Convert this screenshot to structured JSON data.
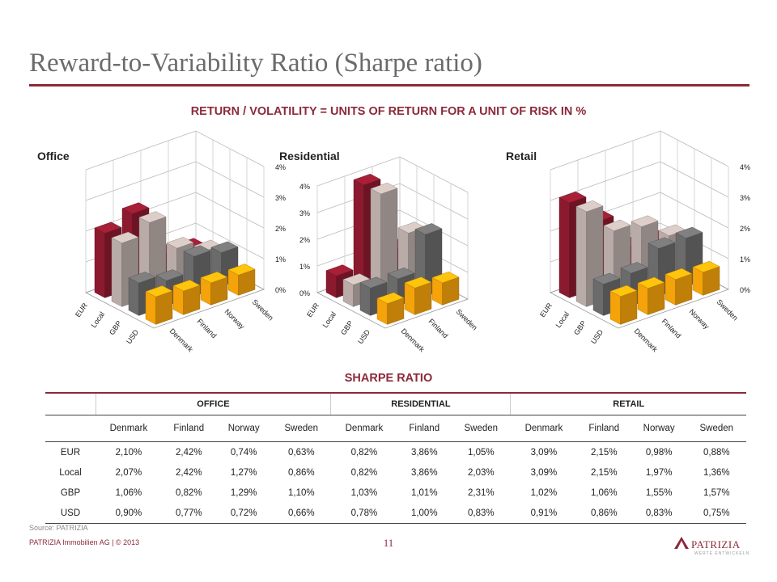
{
  "title": "Reward-to-Variability Ratio (Sharpe ratio)",
  "subtitle": "RETURN / VOLATILITY = UNITS OF RETURN FOR A UNIT OF RISK IN %",
  "colors": {
    "accent": "#8c2a3a",
    "EUR": "#8c1a2e",
    "Local": "#b9aca8",
    "GBP": "#6b6b6b",
    "USD": "#f5a30a"
  },
  "chart_data": [
    {
      "type": "bar",
      "title": "Office",
      "series": [
        {
          "name": "EUR",
          "values": [
            2.1,
            2.42,
            0.74,
            0.63
          ]
        },
        {
          "name": "Local",
          "values": [
            2.07,
            2.42,
            1.27,
            0.86
          ]
        },
        {
          "name": "GBP",
          "values": [
            1.06,
            0.82,
            1.29,
            1.1
          ]
        },
        {
          "name": "USD",
          "values": [
            0.9,
            0.77,
            0.72,
            0.66
          ]
        }
      ],
      "categories": [
        "Denmark",
        "Finland",
        "Norway",
        "Sweden"
      ],
      "ylim": [
        0,
        4
      ],
      "yticks": [
        "0%",
        "1%",
        "2%",
        "3%",
        "4%"
      ]
    },
    {
      "type": "bar",
      "title": "Residential",
      "series": [
        {
          "name": "EUR",
          "values": [
            0.82,
            3.86,
            1.05
          ]
        },
        {
          "name": "Local",
          "values": [
            0.82,
            3.86,
            2.03
          ]
        },
        {
          "name": "GBP",
          "values": [
            1.03,
            1.01,
            2.31
          ]
        },
        {
          "name": "USD",
          "values": [
            0.78,
            1.0,
            0.83
          ]
        }
      ],
      "categories": [
        "Denmark",
        "Finland",
        "Sweden"
      ],
      "ylim": [
        0,
        4
      ],
      "yticks": [
        "0%",
        "1%",
        "2%",
        "3%",
        "4%"
      ]
    },
    {
      "type": "bar",
      "title": "Retail",
      "series": [
        {
          "name": "EUR",
          "values": [
            3.09,
            2.15,
            0.98,
            0.88
          ]
        },
        {
          "name": "Local",
          "values": [
            3.09,
            2.15,
            1.97,
            1.36
          ]
        },
        {
          "name": "GBP",
          "values": [
            1.02,
            1.06,
            1.55,
            1.57
          ]
        },
        {
          "name": "USD",
          "values": [
            0.91,
            0.86,
            0.83,
            0.75
          ]
        }
      ],
      "categories": [
        "Denmark",
        "Finland",
        "Norway",
        "Sweden"
      ],
      "ylim": [
        0,
        4
      ],
      "yticks": [
        "0%",
        "1%",
        "2%",
        "3%",
        "4%"
      ]
    }
  ],
  "table": {
    "title": "SHARPE RATIO",
    "groups": [
      "OFFICE",
      "RESIDENTIAL",
      "RETAIL"
    ],
    "columns": [
      "Denmark",
      "Finland",
      "Norway",
      "Sweden",
      "Denmark",
      "Finland",
      "Sweden",
      "Denmark",
      "Finland",
      "Norway",
      "Sweden"
    ],
    "rows": [
      {
        "label": "EUR",
        "cells": [
          "2,10%",
          "2,42%",
          "0,74%",
          "0,63%",
          "0,82%",
          "3,86%",
          "1,05%",
          "3,09%",
          "2,15%",
          "0,98%",
          "0,88%"
        ]
      },
      {
        "label": "Local",
        "cells": [
          "2,07%",
          "2,42%",
          "1,27%",
          "0,86%",
          "0,82%",
          "3,86%",
          "2,03%",
          "3,09%",
          "2,15%",
          "1,97%",
          "1,36%"
        ]
      },
      {
        "label": "GBP",
        "cells": [
          "1,06%",
          "0,82%",
          "1,29%",
          "1,10%",
          "1,03%",
          "1,01%",
          "2,31%",
          "1,02%",
          "1,06%",
          "1,55%",
          "1,57%"
        ]
      },
      {
        "label": "USD",
        "cells": [
          "0,90%",
          "0,77%",
          "0,72%",
          "0,66%",
          "0,78%",
          "1,00%",
          "0,83%",
          "0,91%",
          "0,86%",
          "0,83%",
          "0,75%"
        ]
      }
    ]
  },
  "source": "Source: PATRIZIA",
  "footer": "PATRIZIA Immobilien AG | © 2013",
  "page_number": "11",
  "logo": {
    "name": "PATRIZIA",
    "tagline": "WERTE ENTWICKELN"
  }
}
